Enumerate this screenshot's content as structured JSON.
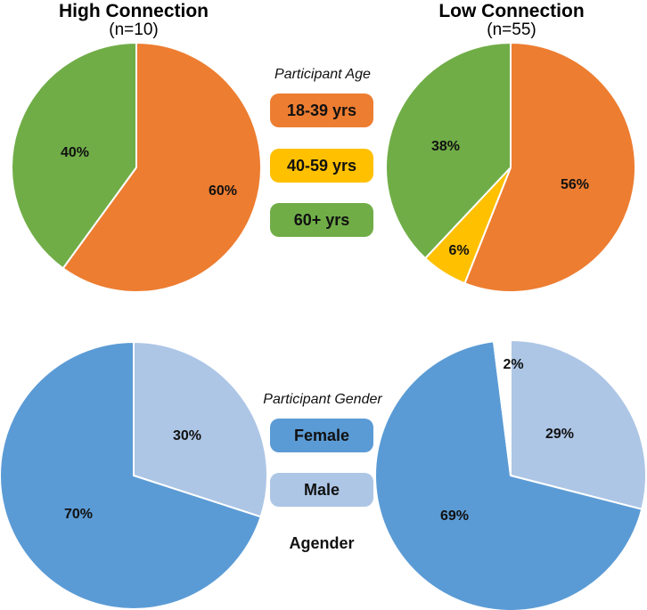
{
  "titles": {
    "high": "High Connection",
    "high_n": "(n=10)",
    "low": "Low Connection",
    "low_n": "(n=55)"
  },
  "legends": {
    "age_title": "Participant Age",
    "age_items": [
      "18-39 yrs",
      "40-59 yrs",
      "60+ yrs"
    ],
    "gender_title": "Participant Gender",
    "gender_items": [
      "Female",
      "Male",
      "Agender"
    ]
  },
  "colors": {
    "age_18_39": "#ED7D31",
    "age_40_59": "#FFC000",
    "age_60_plus": "#70AD47",
    "female": "#5B9BD5",
    "male": "#ADC6E6",
    "agender": "#FFFFFF"
  },
  "chart_data": [
    {
      "type": "pie",
      "title": "High Connection (n=10) - Participant Age",
      "categories": [
        "18-39 yrs",
        "40-59 yrs",
        "60+ yrs"
      ],
      "values": [
        60,
        0,
        40
      ],
      "labels": [
        "60%",
        "",
        "40%"
      ]
    },
    {
      "type": "pie",
      "title": "Low Connection (n=55) - Participant Age",
      "categories": [
        "18-39 yrs",
        "40-59 yrs",
        "60+ yrs"
      ],
      "values": [
        56,
        6,
        38
      ],
      "labels": [
        "56%",
        "6%",
        "38%"
      ]
    },
    {
      "type": "pie",
      "title": "High Connection (n=10) - Participant Gender",
      "categories": [
        "Female",
        "Male",
        "Agender"
      ],
      "values": [
        70,
        30,
        0
      ],
      "labels": [
        "70%",
        "30%",
        ""
      ]
    },
    {
      "type": "pie",
      "title": "Low Connection (n=55) - Participant Gender",
      "categories": [
        "Female",
        "Male",
        "Agender"
      ],
      "values": [
        69,
        29,
        2
      ],
      "labels": [
        "69%",
        "29%",
        "2%"
      ]
    }
  ]
}
